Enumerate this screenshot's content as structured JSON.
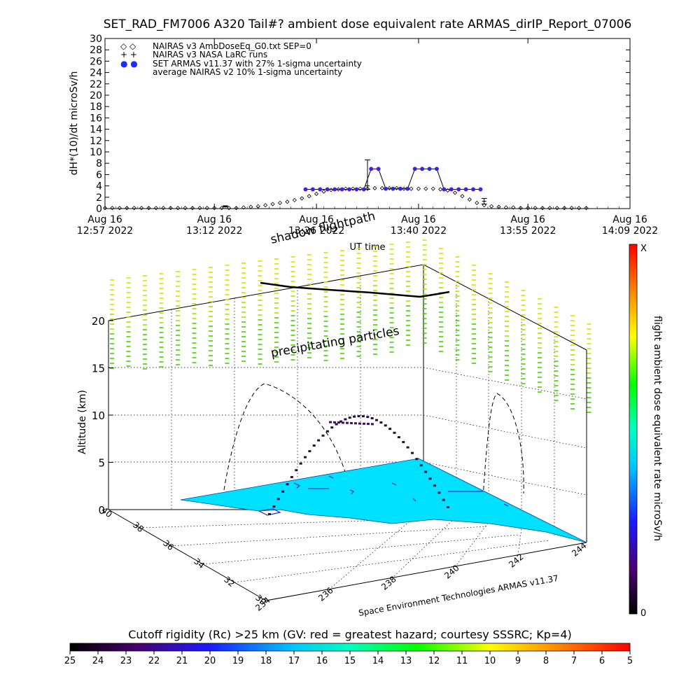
{
  "page_title": "SET_RAD_FM7006  A320 Tail#? ambient dose equivalent rate ARMAS_dirIP_Report_07006",
  "colors": {
    "nairas_v3": "#000000",
    "armas": "#1a2cff",
    "armas_edge": "#8a1aa6",
    "surface": "#00e0ff",
    "precip": "#88dd00"
  },
  "chart_data": [
    {
      "type": "scatter",
      "xlabel": "UT time",
      "ylabel": "dH*(10)/dt microSv/h",
      "ylim": [
        0,
        30
      ],
      "y_ticks": [
        "0",
        "2",
        "4",
        "6",
        "8",
        "10",
        "12",
        "14",
        "16",
        "18",
        "20",
        "22",
        "24",
        "26",
        "28",
        "30"
      ],
      "x_range_minutes": [
        0,
        72
      ],
      "x_ticks": [
        {
          "line1": "Aug 16",
          "line2": "12:57 2022",
          "minute": 0
        },
        {
          "line1": "Aug 16",
          "line2": "13:12 2022",
          "minute": 15
        },
        {
          "line1": "Aug 16",
          "line2": "13:26 2022",
          "minute": 29
        },
        {
          "line1": "Aug 16",
          "line2": "13:40 2022",
          "minute": 43
        },
        {
          "line1": "Aug 16",
          "line2": "13:55 2022",
          "minute": 58
        },
        {
          "line1": "Aug 16",
          "line2": "14:09 2022",
          "minute": 72
        }
      ],
      "legend": [
        {
          "symbol": "◇ ◇",
          "text": "NAIRAS v3 AmbDoseEq_G0.txt SEP=0"
        },
        {
          "symbol": "+ +",
          "text": "NAIRAS v3 NASA LaRC runs"
        },
        {
          "symbol": "● ●",
          "text": "SET ARMAS v11.37 with 27% 1-sigma uncertainty"
        },
        {
          "symbol": "",
          "text": "average NAIRAS v2 10% 1-sigma uncertainty"
        }
      ],
      "series": [
        {
          "name": "NAIRAS v3 AmbDoseEq_G0.txt SEP=0",
          "marker": "diamond",
          "points": [
            [
              0,
              0.1
            ],
            [
              1,
              0.1
            ],
            [
              2,
              0.1
            ],
            [
              3,
              0.1
            ],
            [
              4,
              0.1
            ],
            [
              5,
              0.1
            ],
            [
              6,
              0.1
            ],
            [
              7,
              0.1
            ],
            [
              8,
              0.1
            ],
            [
              9,
              0.1
            ],
            [
              10,
              0.1
            ],
            [
              11,
              0.1
            ],
            [
              12,
              0.1
            ],
            [
              13,
              0.1
            ],
            [
              14,
              0.1
            ],
            [
              15,
              0.1
            ],
            [
              16,
              0.1
            ],
            [
              17,
              0.1
            ],
            [
              18,
              0.1
            ],
            [
              19,
              0.2
            ],
            [
              20,
              0.3
            ],
            [
              21,
              0.4
            ],
            [
              22,
              0.6
            ],
            [
              23,
              0.8
            ],
            [
              24,
              1.0
            ],
            [
              25,
              1.2
            ],
            [
              26,
              1.5
            ],
            [
              27,
              1.8
            ],
            [
              28,
              2.2
            ],
            [
              29,
              2.6
            ],
            [
              30,
              3.0
            ],
            [
              31,
              3.3
            ],
            [
              32,
              3.4
            ],
            [
              33,
              3.5
            ],
            [
              34,
              3.5
            ],
            [
              35,
              3.5
            ],
            [
              36,
              3.5
            ],
            [
              37,
              3.6
            ],
            [
              38,
              3.6
            ],
            [
              39,
              3.6
            ],
            [
              40,
              3.6
            ],
            [
              41,
              3.5
            ],
            [
              42,
              3.5
            ],
            [
              43,
              3.5
            ],
            [
              44,
              3.5
            ],
            [
              45,
              3.5
            ],
            [
              46,
              3.4
            ],
            [
              47,
              3.2
            ],
            [
              48,
              2.8
            ],
            [
              49,
              2.2
            ],
            [
              50,
              1.6
            ],
            [
              51,
              1.0
            ],
            [
              52,
              0.6
            ],
            [
              53,
              0.4
            ],
            [
              54,
              0.3
            ],
            [
              55,
              0.2
            ],
            [
              56,
              0.2
            ],
            [
              57,
              0.1
            ],
            [
              58,
              0.1
            ],
            [
              59,
              0.1
            ],
            [
              60,
              0.1
            ],
            [
              61,
              0.1
            ],
            [
              62,
              0.1
            ],
            [
              63,
              0.1
            ],
            [
              64,
              0.1
            ],
            [
              65,
              0.1
            ],
            [
              66,
              0.1
            ]
          ]
        },
        {
          "name": "SET ARMAS v11.37 with 27% 1-sigma uncertainty",
          "marker": "dot",
          "points": [
            [
              27.5,
              3.4
            ],
            [
              28.5,
              3.4
            ],
            [
              29.5,
              3.4
            ],
            [
              30.5,
              3.4
            ],
            [
              31.5,
              3.4
            ],
            [
              32.5,
              3.4
            ],
            [
              33.5,
              3.4
            ],
            [
              34.5,
              3.4
            ],
            [
              35.5,
              3.4
            ],
            [
              36.5,
              7.0
            ],
            [
              37.5,
              7.0
            ],
            [
              38.5,
              3.5
            ],
            [
              39.5,
              3.5
            ],
            [
              40.5,
              3.5
            ],
            [
              41.5,
              3.5
            ],
            [
              42.5,
              7.0
            ],
            [
              43.5,
              7.0
            ],
            [
              44.5,
              7.0
            ],
            [
              45.5,
              7.0
            ],
            [
              46.5,
              3.4
            ],
            [
              47.5,
              3.4
            ],
            [
              48.5,
              3.4
            ],
            [
              49.5,
              3.4
            ],
            [
              50.5,
              3.4
            ],
            [
              51.5,
              3.4
            ]
          ]
        },
        {
          "name": "average NAIRAS v2 10% 1-sigma uncertainty",
          "marker": "errorbar",
          "points": [
            [
              36.0,
              4.0,
              0.6
            ],
            [
              52.0,
              1.3,
              0.5
            ],
            [
              16.5,
              0.4,
              0.1
            ]
          ]
        }
      ]
    },
    {
      "type": "scatter3d",
      "title": "",
      "zlabel": "Altitude (km)",
      "z_ticks": [
        "0",
        "5",
        "10",
        "15",
        "20"
      ],
      "lat_ticks": [
        "30",
        "32",
        "34",
        "36",
        "38",
        "40"
      ],
      "lon_ticks": [
        "234",
        "236",
        "238",
        "240",
        "242",
        "244"
      ],
      "footer_credit": "Space Environment Technologies ARMAS v11.37",
      "annotations": {
        "shadow_flightpath": "shadow flightpath",
        "precipitating": "precipitating particles"
      },
      "colorbar": {
        "label": "flight ambient dose equivalent rate microSv/h",
        "top": "X",
        "bottom": "0"
      }
    },
    {
      "type": "heatmap",
      "title": "Cutoff rigidity (Rc) >25 km (GV: red = greatest hazard; courtesy SSSRC; Kp=4)",
      "ticks": [
        "25",
        "24",
        "23",
        "22",
        "21",
        "20",
        "19",
        "18",
        "17",
        "16",
        "15",
        "14",
        "13",
        "12",
        "11",
        "10",
        "9",
        "8",
        "7",
        "6",
        "5"
      ]
    }
  ]
}
